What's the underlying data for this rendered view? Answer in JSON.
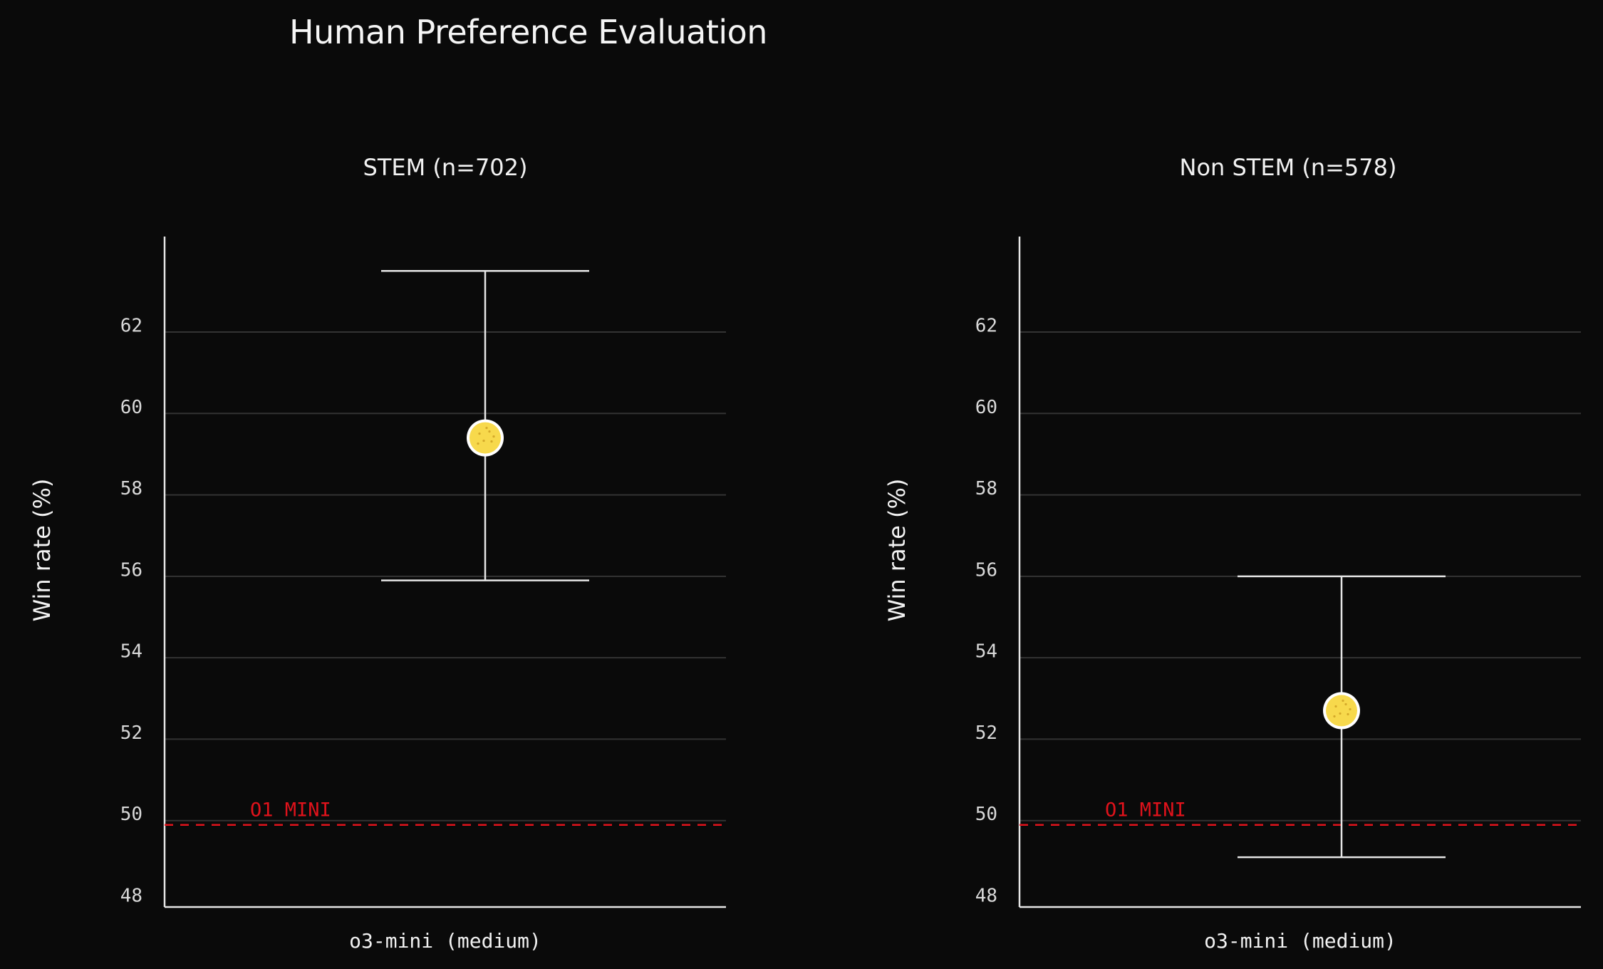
{
  "title": "Human Preference Evaluation",
  "chart_data": [
    {
      "type": "scatter",
      "title": "STEM (n=702)",
      "ylabel": "Win rate (%)",
      "category": "o3-mini (medium)",
      "value": 59.4,
      "error_low": 55.9,
      "error_high": 63.5,
      "ylim": [
        48,
        64
      ],
      "yticks": [
        48,
        50,
        52,
        54,
        56,
        58,
        60,
        62
      ],
      "baseline": {
        "value": 50,
        "label": "O1 MINI"
      },
      "grid": true
    },
    {
      "type": "scatter",
      "title": "Non STEM (n=578)",
      "ylabel": "Win rate (%)",
      "category": "o3-mini (medium)",
      "value": 52.7,
      "error_low": 49.1,
      "error_high": 56.0,
      "ylim": [
        48,
        64
      ],
      "yticks": [
        48,
        50,
        52,
        54,
        56,
        58,
        60,
        62
      ],
      "baseline": {
        "value": 50,
        "label": "O1 MINI"
      },
      "grid": true
    }
  ],
  "colors": {
    "background": "#0a0a0a",
    "text": "#f2f2f2",
    "grid": "#333333",
    "axis": "#e6e6e6",
    "baseline": "#e0121b",
    "point_fill": "#f7d94c",
    "point_stroke": "#ffffff",
    "error_bar": "#e6e6e6"
  }
}
